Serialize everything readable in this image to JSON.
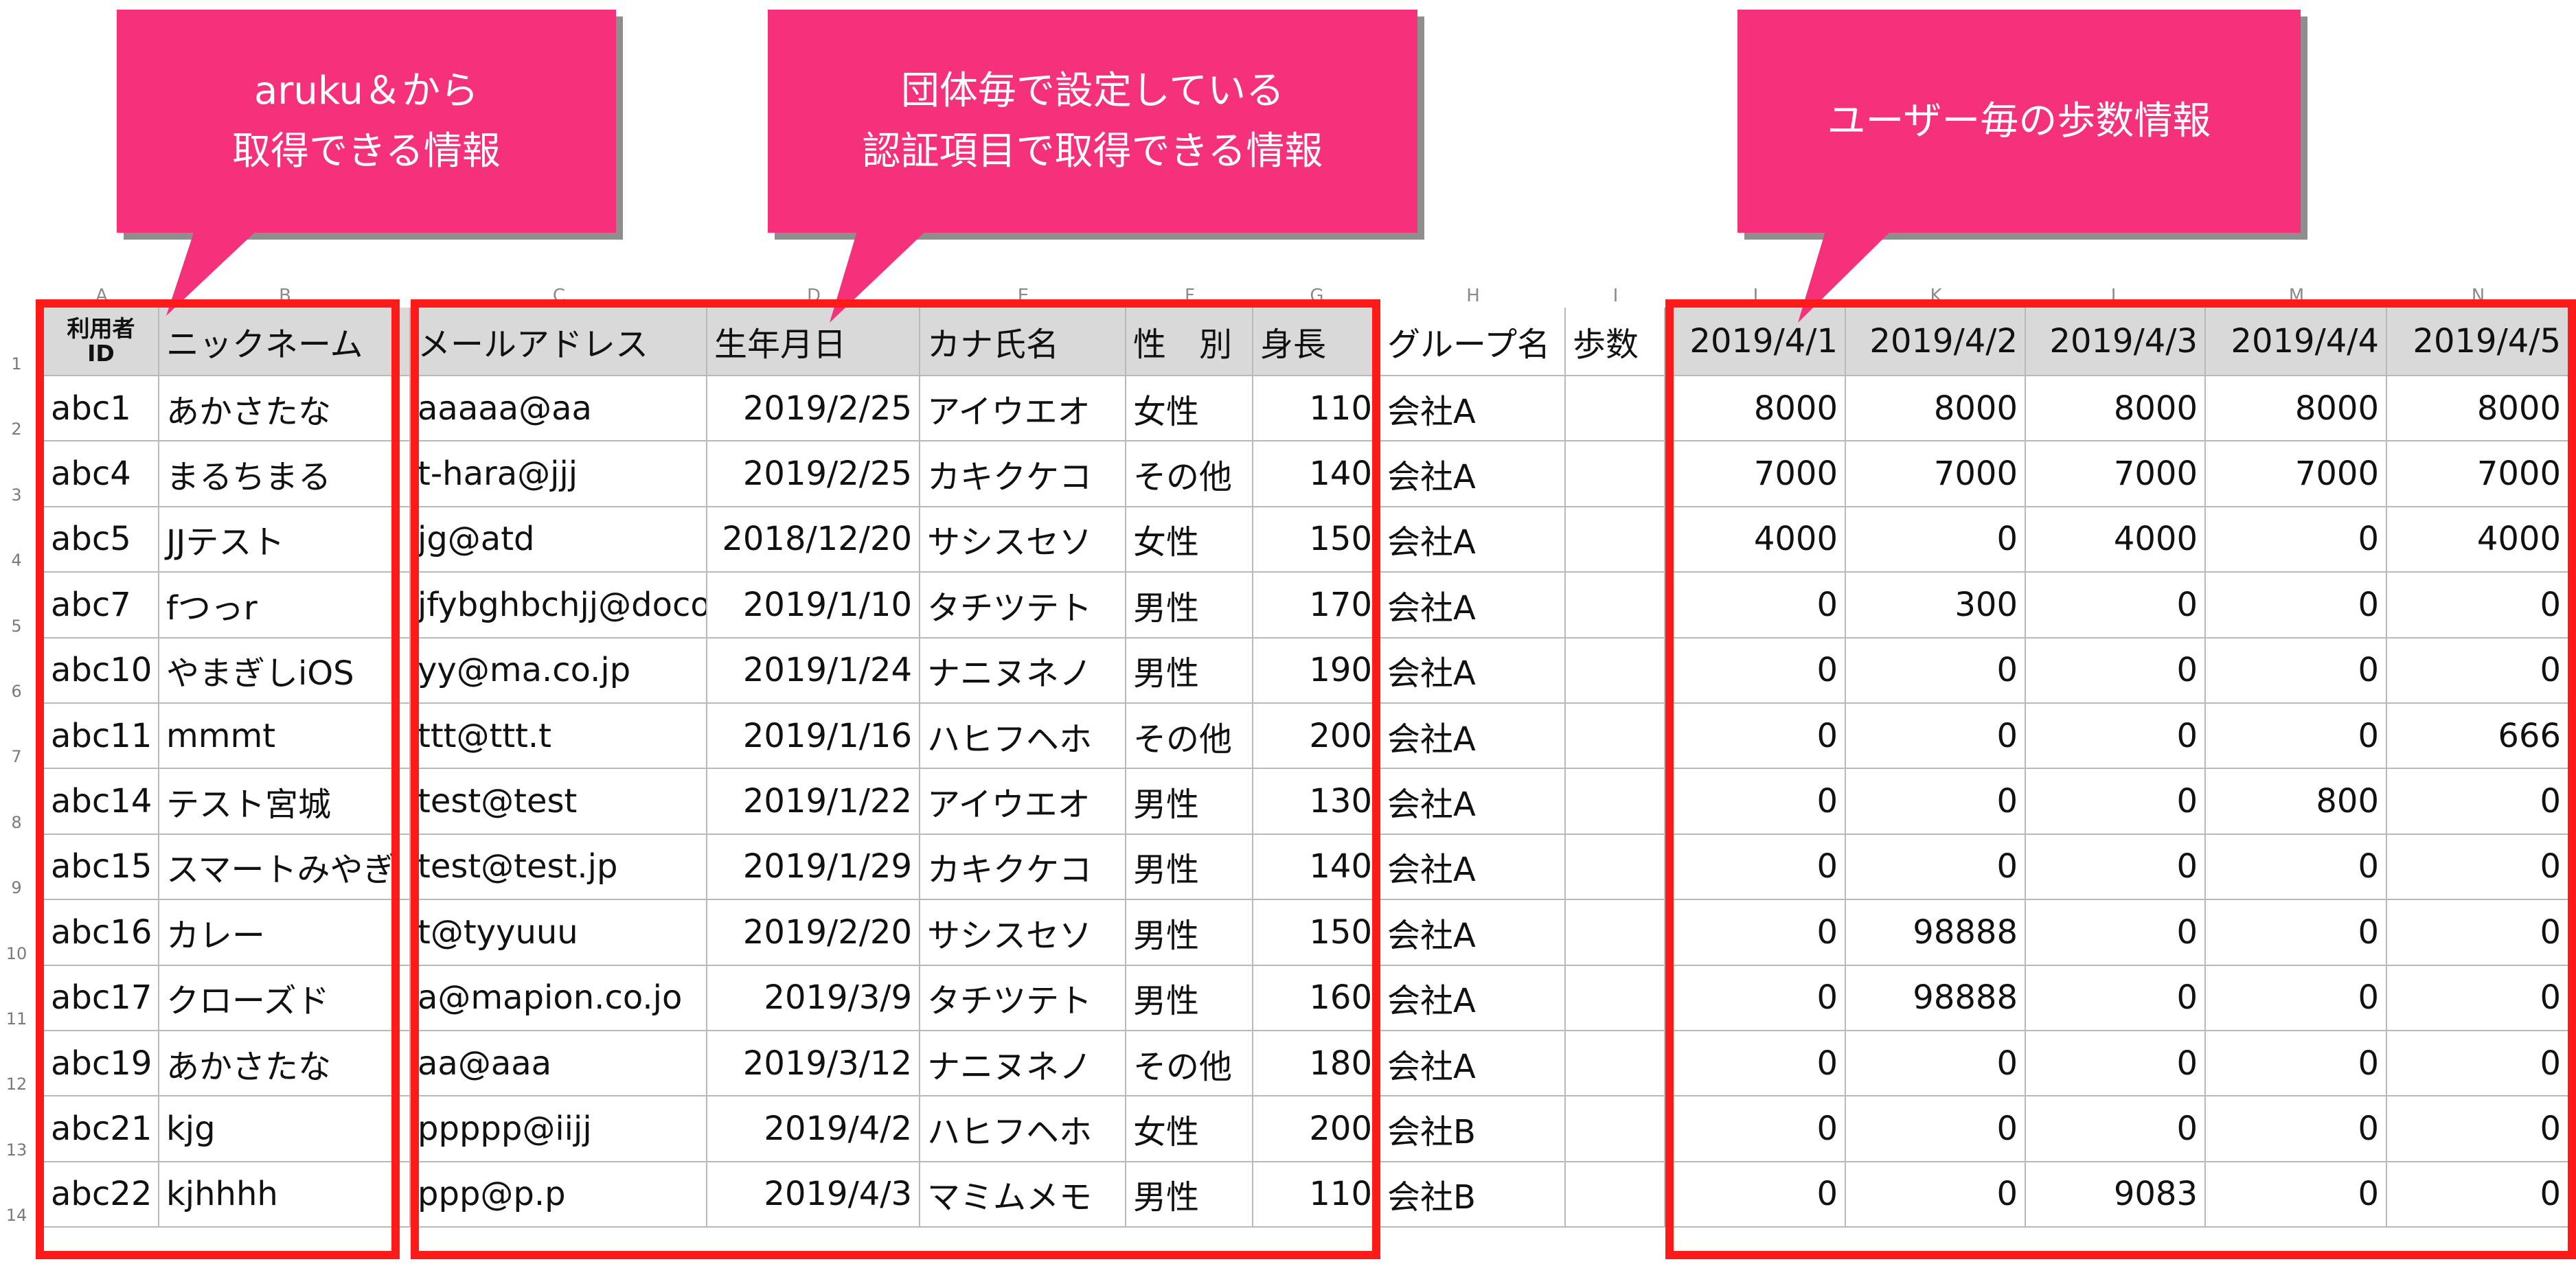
{
  "callouts": [
    {
      "id": "aruku",
      "lines": [
        "aruku＆から",
        "取得できる情報"
      ]
    },
    {
      "id": "group",
      "lines": [
        "団体毎で設定している",
        "認証項目で取得できる情報"
      ]
    },
    {
      "id": "steps",
      "lines": [
        "ユーザー毎の歩数情報"
      ]
    }
  ],
  "column_letters": [
    "A",
    "B",
    "C",
    "D",
    "E",
    "F",
    "G",
    "H",
    "I",
    "J",
    "K",
    "L",
    "M",
    "N"
  ],
  "headers": {
    "user_id": [
      "利用者",
      "ID"
    ],
    "nickname": "ニックネーム",
    "email": "メールアドレス",
    "birthday": "生年月日",
    "kana": "カナ氏名",
    "gender": "性　別",
    "height": "身長",
    "group": "グループ名",
    "steps": "歩数",
    "dates": [
      "2019/4/1",
      "2019/4/2",
      "2019/4/3",
      "2019/4/4",
      "2019/4/5"
    ]
  },
  "rows": [
    {
      "num": "2",
      "id": "abc1",
      "nick": "あかさたな",
      "email": "aaaaa@aa",
      "birth": "2019/2/25",
      "kana": "アイウエオ",
      "gender": "女性",
      "height": "110",
      "group": "会社A",
      "steps": "",
      "d": [
        "8000",
        "8000",
        "8000",
        "8000",
        "8000"
      ]
    },
    {
      "num": "3",
      "id": "abc4",
      "nick": "まるちまる",
      "email": "t-hara@jjj",
      "birth": "2019/2/25",
      "kana": "カキクケコ",
      "gender": "その他",
      "height": "140",
      "group": "会社A",
      "steps": "",
      "d": [
        "7000",
        "7000",
        "7000",
        "7000",
        "7000"
      ]
    },
    {
      "num": "4",
      "id": "abc5",
      "nick": "JJテスト",
      "email": "jg@atd",
      "birth": "2018/12/20",
      "kana": "サシスセソ",
      "gender": "女性",
      "height": "150",
      "group": "会社A",
      "steps": "",
      "d": [
        "4000",
        "0",
        "4000",
        "0",
        "4000"
      ]
    },
    {
      "num": "5",
      "id": "abc7",
      "nick": "fつっr",
      "email": "jfybghbchjj@docon",
      "birth": "2019/1/10",
      "kana": "タチツテト",
      "gender": "男性",
      "height": "170",
      "group": "会社A",
      "steps": "",
      "d": [
        "0",
        "300",
        "0",
        "0",
        "0"
      ]
    },
    {
      "num": "6",
      "id": "abc10",
      "nick": "やまぎしiOS",
      "email": "yy@ma.co.jp",
      "birth": "2019/1/24",
      "kana": "ナニヌネノ",
      "gender": "男性",
      "height": "190",
      "group": "会社A",
      "steps": "",
      "d": [
        "0",
        "0",
        "0",
        "0",
        "0"
      ]
    },
    {
      "num": "7",
      "id": "abc11",
      "nick": "mmmt",
      "email": "ttt@ttt.t",
      "birth": "2019/1/16",
      "kana": "ハヒフヘホ",
      "gender": "その他",
      "height": "200",
      "group": "会社A",
      "steps": "",
      "d": [
        "0",
        "0",
        "0",
        "0",
        "666"
      ]
    },
    {
      "num": "8",
      "id": "abc14",
      "nick": "テスト宮城",
      "email": "test@test",
      "birth": "2019/1/22",
      "kana": "アイウエオ",
      "gender": "男性",
      "height": "130",
      "group": "会社A",
      "steps": "",
      "d": [
        "0",
        "0",
        "0",
        "800",
        "0"
      ]
    },
    {
      "num": "9",
      "id": "abc15",
      "nick": "スマートみやぎ",
      "email": "test@test.jp",
      "birth": "2019/1/29",
      "kana": "カキクケコ",
      "gender": "男性",
      "height": "140",
      "group": "会社A",
      "steps": "",
      "d": [
        "0",
        "0",
        "0",
        "0",
        "0"
      ]
    },
    {
      "num": "10",
      "id": "abc16",
      "nick": "カレー",
      "email": "t@tyyuuu",
      "birth": "2019/2/20",
      "kana": "サシスセソ",
      "gender": "男性",
      "height": "150",
      "group": "会社A",
      "steps": "",
      "d": [
        "0",
        "98888",
        "0",
        "0",
        "0"
      ]
    },
    {
      "num": "11",
      "id": "abc17",
      "nick": "クローズド",
      "email": "a@mapion.co.jo",
      "birth": "2019/3/9",
      "kana": "タチツテト",
      "gender": "男性",
      "height": "160",
      "group": "会社A",
      "steps": "",
      "d": [
        "0",
        "98888",
        "0",
        "0",
        "0"
      ]
    },
    {
      "num": "12",
      "id": "abc19",
      "nick": "あかさたな",
      "email": "aa@aaa",
      "birth": "2019/3/12",
      "kana": "ナニヌネノ",
      "gender": "その他",
      "height": "180",
      "group": "会社A",
      "steps": "",
      "d": [
        "0",
        "0",
        "0",
        "0",
        "0"
      ]
    },
    {
      "num": "13",
      "id": "abc21",
      "nick": "kjg",
      "email": "ppppp@iijj",
      "birth": "2019/4/2",
      "kana": "ハヒフヘホ",
      "gender": "女性",
      "height": "200",
      "group": "会社B",
      "steps": "",
      "d": [
        "0",
        "0",
        "0",
        "0",
        "0"
      ]
    },
    {
      "num": "14",
      "id": "abc22",
      "nick": "kjhhhh",
      "email": "ppp@p.p",
      "birth": "2019/4/3",
      "kana": "マミムメモ",
      "gender": "男性",
      "height": "110",
      "group": "会社B",
      "steps": "",
      "d": [
        "0",
        "0",
        "9083",
        "0",
        "0"
      ]
    }
  ],
  "colors": {
    "callout": "#f4317a",
    "highlight_box": "#ff1a1a",
    "header_fill": "#d9d9d9",
    "grid": "#b9b9b9"
  }
}
